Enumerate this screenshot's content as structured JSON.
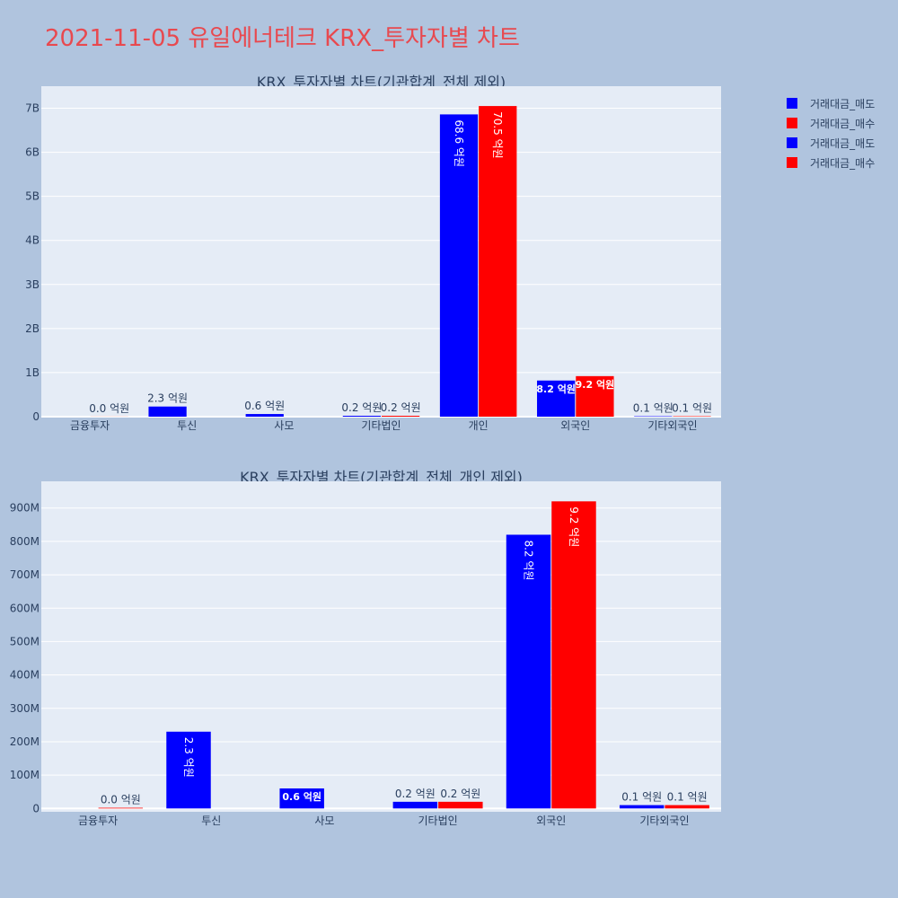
{
  "page": {
    "title": "2021-11-05 유일에너테크 KRX_투자자별 차트"
  },
  "colors": {
    "background": "#b0c4de",
    "plot_bg": "#e5ecf6",
    "sell": "#0000ff",
    "buy": "#ff0000",
    "title": "#e8494f",
    "text": "#2a3f5f"
  },
  "legend": {
    "items": [
      {
        "label": "거래대금_매도",
        "color": "#0000ff"
      },
      {
        "label": "거래대금_매수",
        "color": "#ff0000"
      },
      {
        "label": "거래대금_매도",
        "color": "#0000ff"
      },
      {
        "label": "거래대금_매수",
        "color": "#ff0000"
      }
    ]
  },
  "chart_data": [
    {
      "type": "bar",
      "title": "KRX_투자자별 차트(기관합계_전체 제외)",
      "categories": [
        "금융투자",
        "투신",
        "사모",
        "기타법인",
        "개인",
        "외국인",
        "기타외국인"
      ],
      "series": [
        {
          "name": "거래대금_매도",
          "values": [
            0,
            230000000,
            60000000,
            20000000,
            6860000000,
            820000000,
            10000000
          ],
          "labels": [
            "",
            "2.3 억원",
            "0.6 억원",
            "0.2 억원",
            "68.6 억원",
            "8.2 억원",
            "0.1 억원"
          ]
        },
        {
          "name": "거래대금_매수",
          "values": [
            2000000,
            0,
            0,
            20000000,
            7050000000,
            920000000,
            10000000
          ],
          "labels": [
            "0.0 억원",
            "",
            "",
            "0.2 억원",
            "70.5 억원",
            "9.2 억원",
            "0.1 억원"
          ]
        }
      ],
      "ylim": [
        0,
        7500000000
      ],
      "yticks": [
        0,
        1000000000,
        2000000000,
        3000000000,
        4000000000,
        5000000000,
        6000000000,
        7000000000
      ],
      "yticklabels": [
        "0",
        "1B",
        "2B",
        "3B",
        "4B",
        "5B",
        "6B",
        "7B"
      ],
      "grid": true
    },
    {
      "type": "bar",
      "title": "KRX_투자자별 차트(기관합계_전체_개인 제외)",
      "categories": [
        "금융투자",
        "투신",
        "사모",
        "기타법인",
        "외국인",
        "기타외국인"
      ],
      "series": [
        {
          "name": "거래대금_매도",
          "values": [
            0,
            230000000,
            60000000,
            20000000,
            820000000,
            10000000
          ],
          "labels": [
            "",
            "2.3 억원",
            "0.6 억원",
            "0.2 억원",
            "8.2 억원",
            "0.1 억원"
          ]
        },
        {
          "name": "거래대금_매수",
          "values": [
            2000000,
            0,
            0,
            20000000,
            920000000,
            10000000
          ],
          "labels": [
            "0.0 억원",
            "",
            "",
            "0.2 억원",
            "9.2 억원",
            "0.1 억원"
          ]
        }
      ],
      "ylim": [
        -10000000,
        980000000
      ],
      "yticks": [
        0,
        100000000,
        200000000,
        300000000,
        400000000,
        500000000,
        600000000,
        700000000,
        800000000,
        900000000
      ],
      "yticklabels": [
        "0",
        "100M",
        "200M",
        "300M",
        "400M",
        "500M",
        "600M",
        "700M",
        "800M",
        "900M"
      ],
      "grid": true
    }
  ]
}
